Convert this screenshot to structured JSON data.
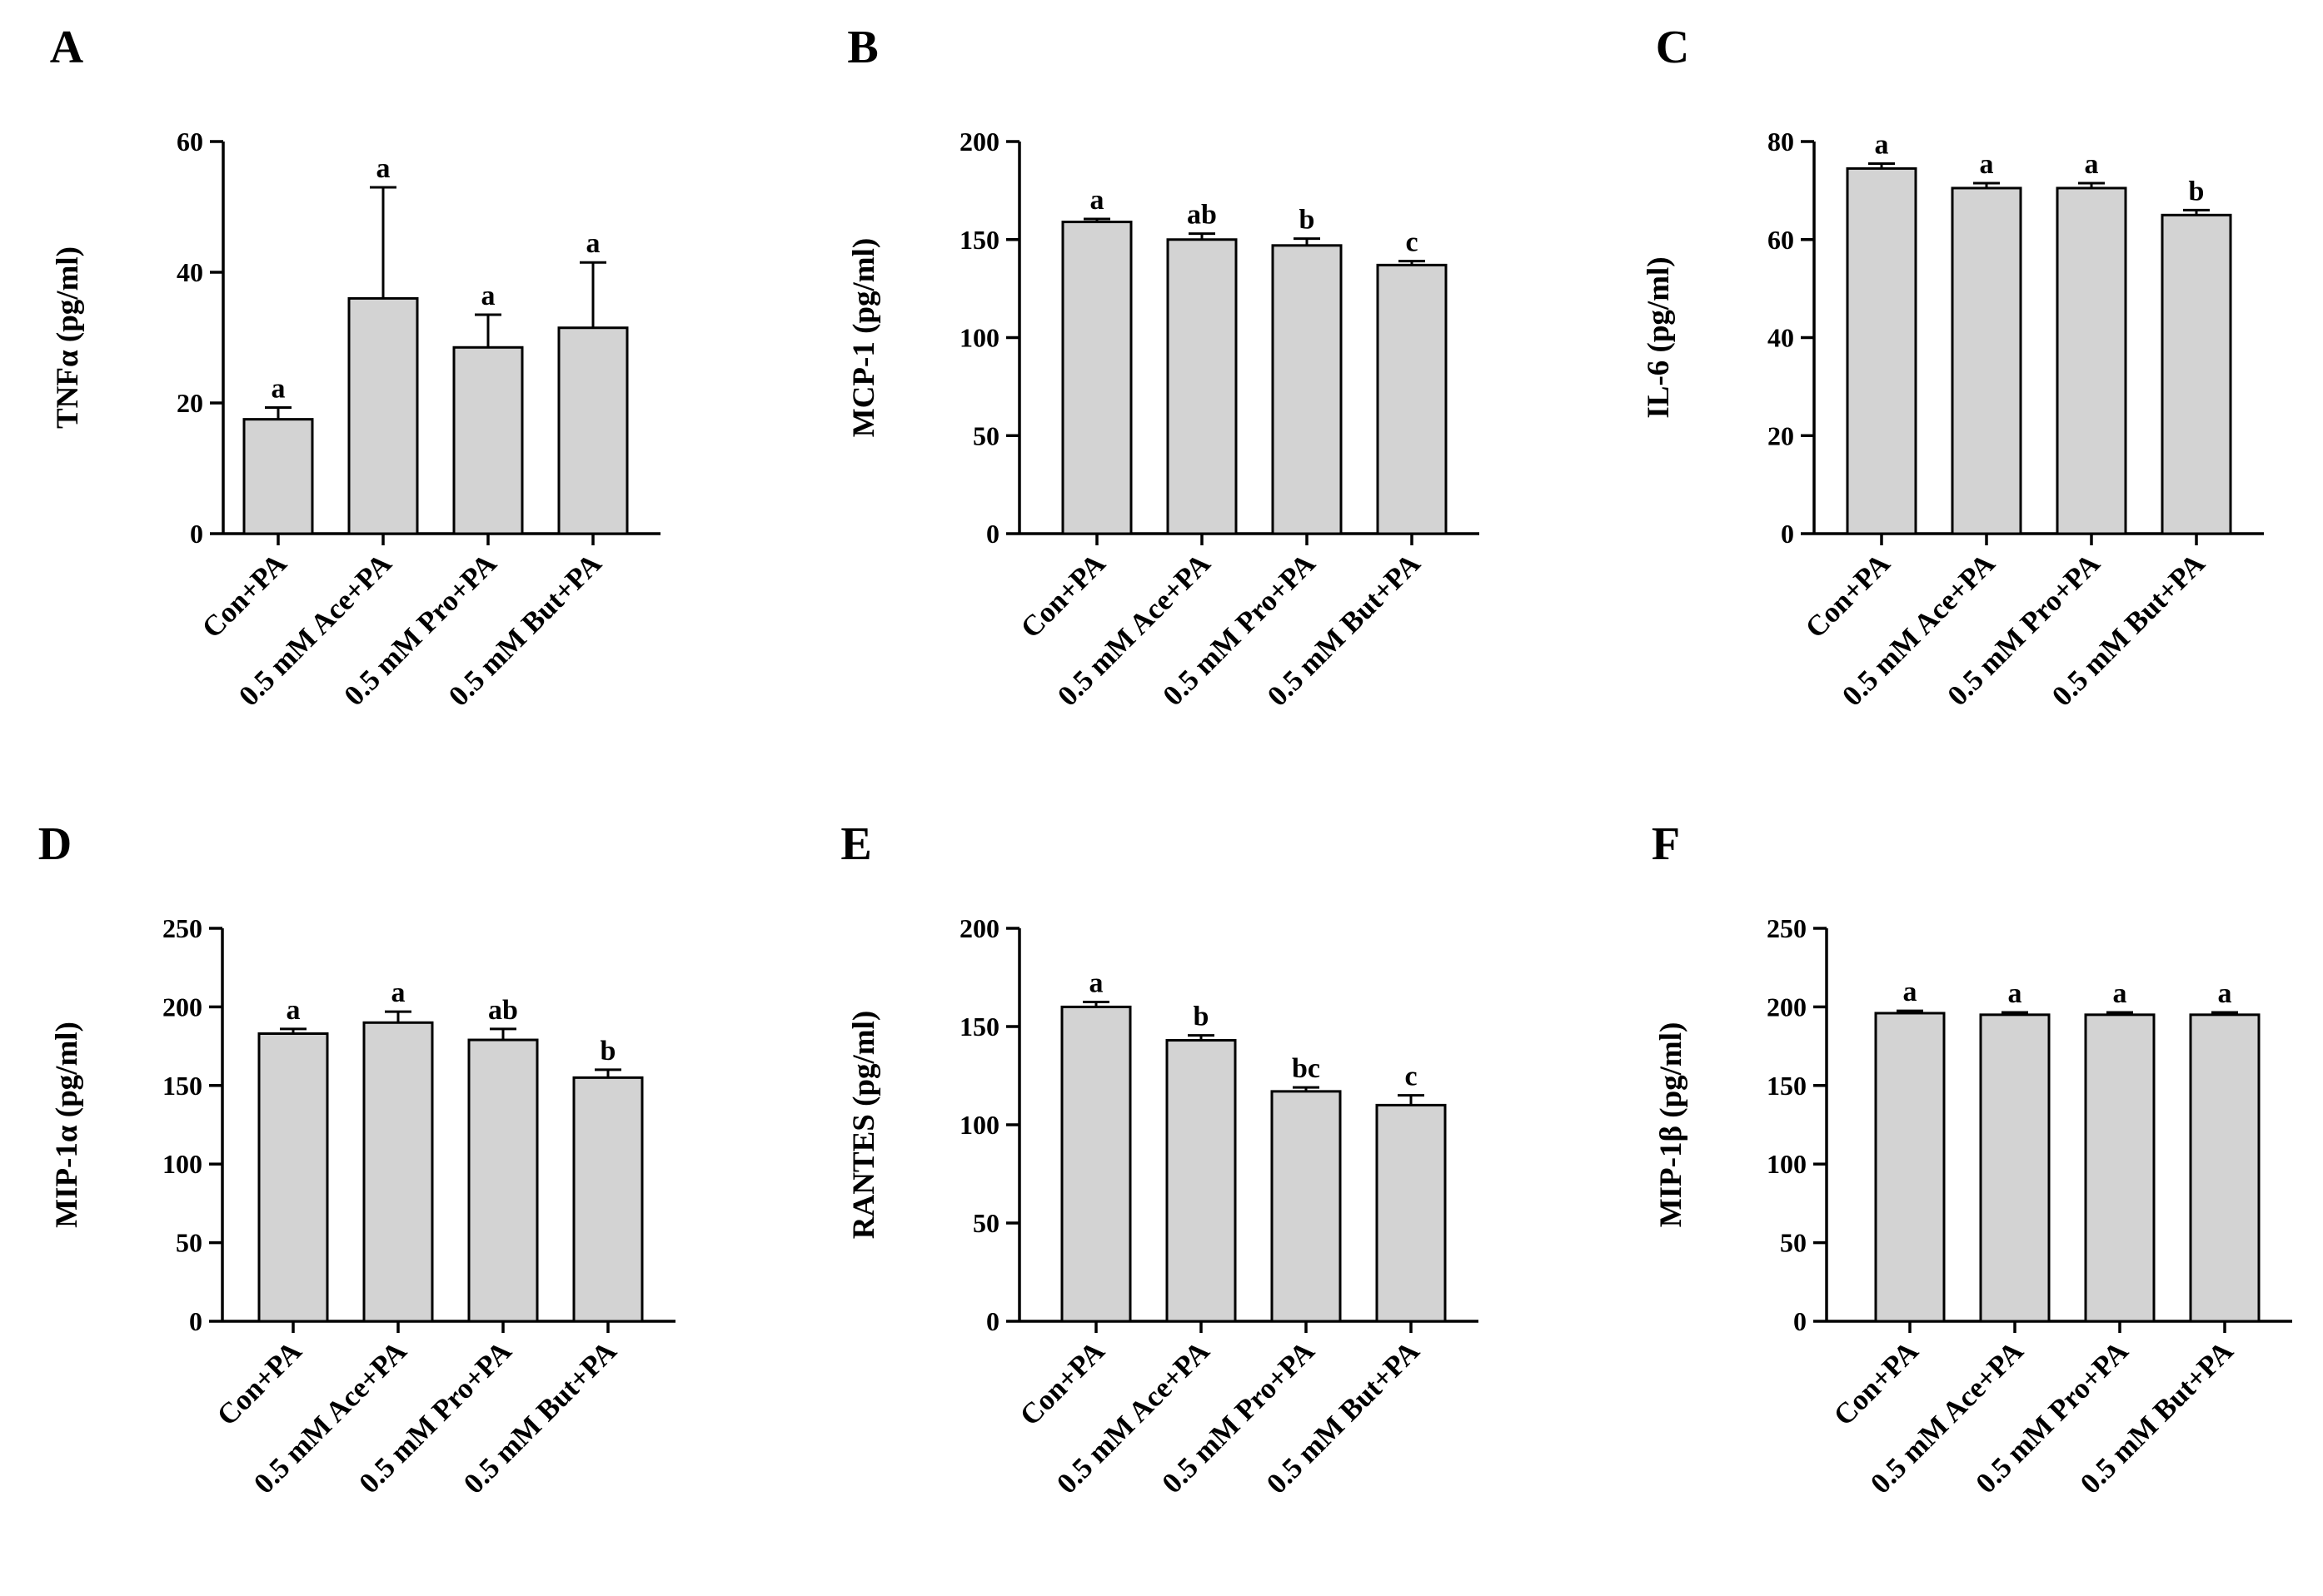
{
  "chart_data": [
    {
      "type": "bar",
      "panel": "A",
      "ylabel": "TNFα (pg/ml)",
      "ylim": [
        0,
        60
      ],
      "yticks": [
        0,
        20,
        40,
        60
      ],
      "categories": [
        "Con+PA",
        "0.5 mM Ace+PA",
        "0.5 mM Pro+PA",
        "0.5 mM But+PA"
      ],
      "values": [
        17.5,
        36,
        28.5,
        31.5
      ],
      "errors": [
        1.8,
        17,
        5,
        10
      ],
      "significance": [
        "a",
        "a",
        "a",
        "a"
      ]
    },
    {
      "type": "bar",
      "panel": "B",
      "ylabel": "MCP-1 (pg/ml)",
      "ylim": [
        0,
        200
      ],
      "yticks": [
        0,
        50,
        100,
        150,
        200
      ],
      "categories": [
        "Con+PA",
        "0.5 mM Ace+PA",
        "0.5 mM Pro+PA",
        "0.5 mM But+PA"
      ],
      "values": [
        159,
        150,
        147,
        137
      ],
      "errors": [
        1.5,
        3,
        3.5,
        2
      ],
      "significance": [
        "a",
        "ab",
        "b",
        "c"
      ]
    },
    {
      "type": "bar",
      "panel": "C",
      "ylabel": "IL-6 (pg/ml)",
      "ylim": [
        0,
        80
      ],
      "yticks": [
        0,
        20,
        40,
        60,
        80
      ],
      "categories": [
        "Con+PA",
        "0.5 mM Ace+PA",
        "0.5 mM Pro+PA",
        "0.5 mM But+PA"
      ],
      "values": [
        74.5,
        70.5,
        70.5,
        65
      ],
      "errors": [
        1,
        1,
        1,
        1
      ],
      "significance": [
        "a",
        "a",
        "a",
        "b"
      ]
    },
    {
      "type": "bar",
      "panel": "D",
      "ylabel": "MIP-1α (pg/ml)",
      "ylim": [
        0,
        250
      ],
      "yticks": [
        0,
        50,
        100,
        150,
        200,
        250
      ],
      "categories": [
        "Con+PA",
        "0.5 mM Ace+PA",
        "0.5 mM Pro+PA",
        "0.5 mM But+PA"
      ],
      "values": [
        183,
        190,
        179,
        155
      ],
      "errors": [
        3,
        7,
        7,
        5
      ],
      "significance": [
        "a",
        "a",
        "ab",
        "b"
      ]
    },
    {
      "type": "bar",
      "panel": "E",
      "ylabel": "RANTES (pg/ml)",
      "ylim": [
        0,
        200
      ],
      "yticks": [
        0,
        50,
        100,
        150,
        200
      ],
      "categories": [
        "Con+PA",
        "0.5 mM Ace+PA",
        "0.5 mM Pro+PA",
        "0.5 mM But+PA"
      ],
      "values": [
        160,
        143,
        117,
        110
      ],
      "errors": [
        2.5,
        2.5,
        2,
        5
      ],
      "significance": [
        "a",
        "b",
        "bc",
        "c"
      ]
    },
    {
      "type": "bar",
      "panel": "F",
      "ylabel": "MIP-1β (pg/ml)",
      "ylim": [
        0,
        250
      ],
      "yticks": [
        0,
        50,
        100,
        150,
        200,
        250
      ],
      "categories": [
        "Con+PA",
        "0.5 mM Ace+PA",
        "0.5 mM Pro+PA",
        "0.5 mM But+PA"
      ],
      "values": [
        196,
        195,
        195,
        195
      ],
      "errors": [
        1.5,
        1.5,
        1.5,
        1.5
      ],
      "significance": [
        "a",
        "a",
        "a",
        "a"
      ]
    }
  ]
}
